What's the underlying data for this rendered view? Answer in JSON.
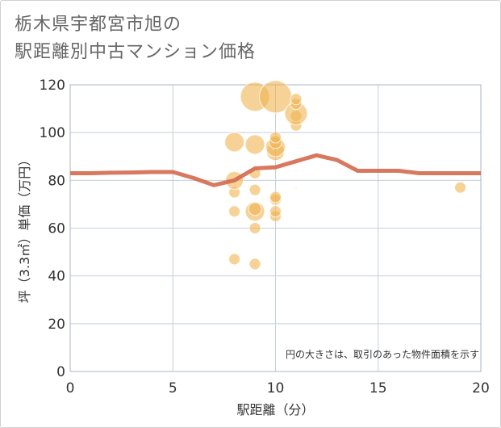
{
  "page": {
    "title_line1": "栃木県宇都宮市旭の",
    "title_line2": "駅距離別中古マンション価格"
  },
  "colors": {
    "bubble": "#f0b452",
    "line": "#d4694e",
    "grid": "#c5cfd9",
    "plot_border": "#aab4c0"
  },
  "chart_data": {
    "type": "scatter",
    "title": "栃木県宇都宮市旭の駅距離別中古マンション価格",
    "xlabel": "駅距離（分）",
    "ylabel": "坪（3.3㎡）単価（万円）",
    "xlim": [
      0,
      20
    ],
    "ylim": [
      0,
      120
    ],
    "xticks": [
      0,
      5,
      10,
      15,
      20
    ],
    "yticks": [
      0,
      20,
      40,
      60,
      80,
      100,
      120
    ],
    "xtick_labels": [
      "0",
      "5",
      "10",
      "15",
      "20"
    ],
    "ytick_labels": [
      "0",
      "20",
      "40",
      "60",
      "80",
      "100",
      "120"
    ],
    "grid": true,
    "note": "円の大きさは、取引のあった物件面積を示す",
    "bubbles": [
      {
        "x": 8,
        "y": 47,
        "size": 7
      },
      {
        "x": 8,
        "y": 67,
        "size": 7
      },
      {
        "x": 8,
        "y": 75,
        "size": 7
      },
      {
        "x": 8,
        "y": 80,
        "size": 11
      },
      {
        "x": 8,
        "y": 96,
        "size": 12
      },
      {
        "x": 9,
        "y": 45,
        "size": 7
      },
      {
        "x": 9,
        "y": 60,
        "size": 7
      },
      {
        "x": 9,
        "y": 67,
        "size": 12
      },
      {
        "x": 9,
        "y": 68,
        "size": 8
      },
      {
        "x": 9,
        "y": 76,
        "size": 7
      },
      {
        "x": 9,
        "y": 83,
        "size": 7
      },
      {
        "x": 9,
        "y": 95,
        "size": 12
      },
      {
        "x": 9,
        "y": 115,
        "size": 18
      },
      {
        "x": 10,
        "y": 65,
        "size": 7
      },
      {
        "x": 10,
        "y": 67,
        "size": 7
      },
      {
        "x": 10,
        "y": 72,
        "size": 7
      },
      {
        "x": 10,
        "y": 73,
        "size": 7
      },
      {
        "x": 10,
        "y": 92,
        "size": 11
      },
      {
        "x": 10,
        "y": 94,
        "size": 12
      },
      {
        "x": 10,
        "y": 96,
        "size": 8
      },
      {
        "x": 10,
        "y": 98,
        "size": 7
      },
      {
        "x": 10,
        "y": 115,
        "size": 20
      },
      {
        "x": 11,
        "y": 77,
        "size": 1
      },
      {
        "x": 11,
        "y": 103,
        "size": 7
      },
      {
        "x": 11,
        "y": 107,
        "size": 7
      },
      {
        "x": 11,
        "y": 108,
        "size": 14
      },
      {
        "x": 11,
        "y": 112,
        "size": 7
      },
      {
        "x": 11,
        "y": 114,
        "size": 7
      },
      {
        "x": 19,
        "y": 77,
        "size": 7
      }
    ],
    "series": [
      {
        "name": "平均坪単価",
        "x": [
          0,
          1,
          2,
          3,
          4,
          5,
          6,
          7,
          8,
          9,
          10,
          11,
          12,
          13,
          14,
          15,
          16,
          17,
          18,
          19,
          20
        ],
        "values": [
          83,
          83,
          83.2,
          83.3,
          83.5,
          83.5,
          81,
          78,
          80,
          85,
          85.5,
          88,
          90.5,
          88.5,
          84,
          84,
          84,
          83,
          83,
          83,
          83
        ]
      }
    ]
  }
}
